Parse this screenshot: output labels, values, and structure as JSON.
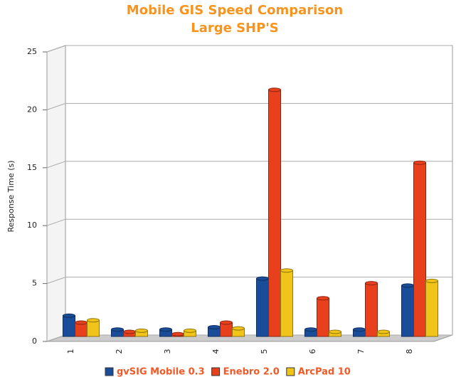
{
  "chart_data": {
    "type": "bar",
    "title": "Mobile GIS Speed Comparison",
    "subtitle": "Large SHP'S",
    "y_label": "Response Time (s)",
    "categories": [
      "1",
      "2",
      "3",
      "4",
      "5",
      "6",
      "7",
      "8"
    ],
    "series": [
      {
        "name": "gvSIG Mobile 0.3",
        "color": "#1a4d99",
        "values": [
          1.8,
          0.6,
          0.6,
          0.8,
          5.0,
          0.6,
          0.6,
          4.4
        ]
      },
      {
        "name": "Enebro 2.0",
        "color": "#e8401c",
        "values": [
          1.2,
          0.4,
          0.2,
          1.2,
          21.3,
          3.3,
          4.6,
          15.0
        ]
      },
      {
        "name": "ArcPad 10",
        "color": "#f0c419",
        "values": [
          1.4,
          0.5,
          0.5,
          0.7,
          5.7,
          0.4,
          0.4,
          4.8
        ]
      }
    ],
    "ylim": [
      0,
      25
    ],
    "yticks": [
      0,
      5,
      10,
      15,
      20,
      25
    ],
    "grid": true
  }
}
